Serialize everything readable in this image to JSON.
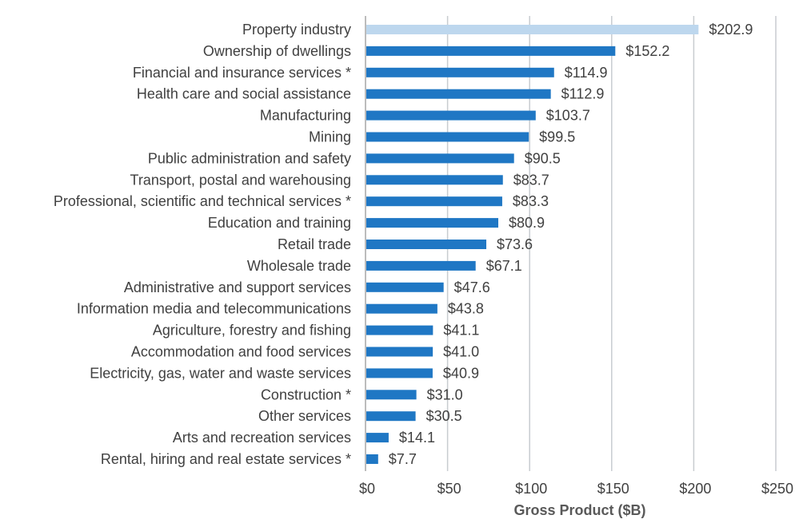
{
  "chart_data": {
    "type": "bar",
    "orientation": "horizontal",
    "title": "",
    "xlabel": "Gross Product ($B)",
    "ylabel": "",
    "xlim": [
      0,
      250
    ],
    "grid": "vertical",
    "legend": "none",
    "categories": [
      "Property industry",
      "Ownership of dwellings",
      "Financial and insurance services *",
      "Health care and social assistance",
      "Manufacturing",
      "Mining",
      "Public administration and safety",
      "Transport, postal and warehousing",
      "Professional, scientific and technical services *",
      "Education and training",
      "Retail trade",
      "Wholesale trade",
      "Administrative and support services",
      "Information media and telecommunications",
      "Agriculture, forestry and fishing",
      "Accommodation and food services",
      "Electricity, gas, water and waste services",
      "Construction *",
      "Other services",
      "Arts and recreation services",
      "Rental, hiring and real estate services *"
    ],
    "values": [
      202.9,
      152.2,
      114.9,
      112.9,
      103.7,
      99.5,
      90.5,
      83.7,
      83.3,
      80.9,
      73.6,
      67.1,
      47.6,
      43.8,
      41.1,
      41.0,
      40.9,
      31.0,
      30.5,
      14.1,
      7.7
    ],
    "value_labels": [
      "$202.9",
      "$152.2",
      "$114.9",
      "$112.9",
      "$103.7",
      "$99.5",
      "$90.5",
      "$83.7",
      "$83.3",
      "$80.9",
      "$73.6",
      "$67.1",
      "$47.6",
      "$43.8",
      "$41.1",
      "$41.0",
      "$40.9",
      "$31.0",
      "$30.5",
      "$14.1",
      "$7.7"
    ],
    "x_ticks": [
      0,
      50,
      100,
      150,
      200,
      250
    ],
    "x_tick_labels": [
      "$0",
      "$50",
      "$100",
      "$150",
      "$200",
      "$250"
    ],
    "colors": {
      "bar": "#1f77c4",
      "highlight_bar": "#bdd7ee",
      "grid": "#c8ccd0",
      "axis": "#a6a6a6"
    },
    "highlight_index": 0
  }
}
